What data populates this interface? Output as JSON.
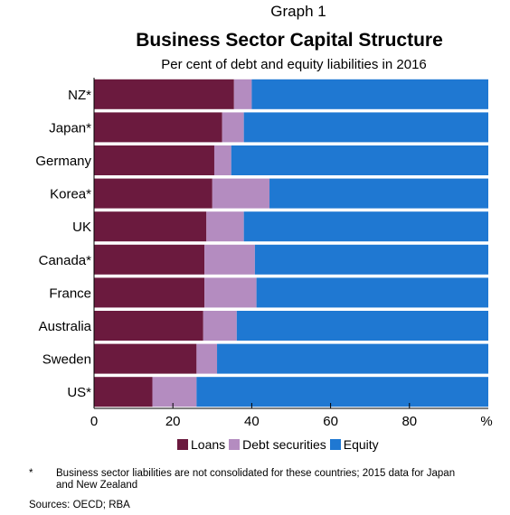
{
  "graph_number": "Graph 1",
  "colors": {
    "loans": "#6b1a3e",
    "debt_securities": "#b48cc0",
    "equity": "#1f78d2"
  },
  "legend": {
    "loans": "Loans",
    "debt_securities": "Debt securities",
    "equity": "Equity"
  },
  "footnote": {
    "marker": "*",
    "text": "Business sector liabilities are not consolidated for these countries; 2015 data for Japan and New Zealand"
  },
  "sources": "Sources:  OECD; RBA",
  "chart_data": {
    "type": "bar",
    "orientation": "horizontal",
    "stacked": true,
    "title": "Business Sector Capital Structure",
    "subtitle": "Per cent of debt and equity liabilities in 2016",
    "categories": [
      "NZ*",
      "Japan*",
      "Germany",
      "Korea*",
      "UK",
      "Canada*",
      "France",
      "Australia",
      "Sweden",
      "US*"
    ],
    "series": [
      {
        "name": "Loans",
        "values": [
          35.5,
          32.5,
          30.5,
          30.0,
          28.5,
          28.0,
          28.0,
          27.7,
          26.0,
          14.8
        ]
      },
      {
        "name": "Debt securities",
        "values": [
          4.5,
          5.5,
          4.3,
          14.5,
          9.5,
          12.8,
          13.2,
          8.5,
          5.2,
          11.2
        ]
      },
      {
        "name": "Equity",
        "values": [
          60.0,
          62.0,
          65.2,
          55.5,
          62.0,
          59.2,
          58.8,
          63.8,
          68.8,
          74.0
        ]
      }
    ],
    "xlim": [
      0,
      100
    ],
    "x_ticks": [
      0,
      20,
      40,
      60,
      80
    ],
    "x_unit_label": "%",
    "legend_position": "bottom",
    "grid": false
  }
}
